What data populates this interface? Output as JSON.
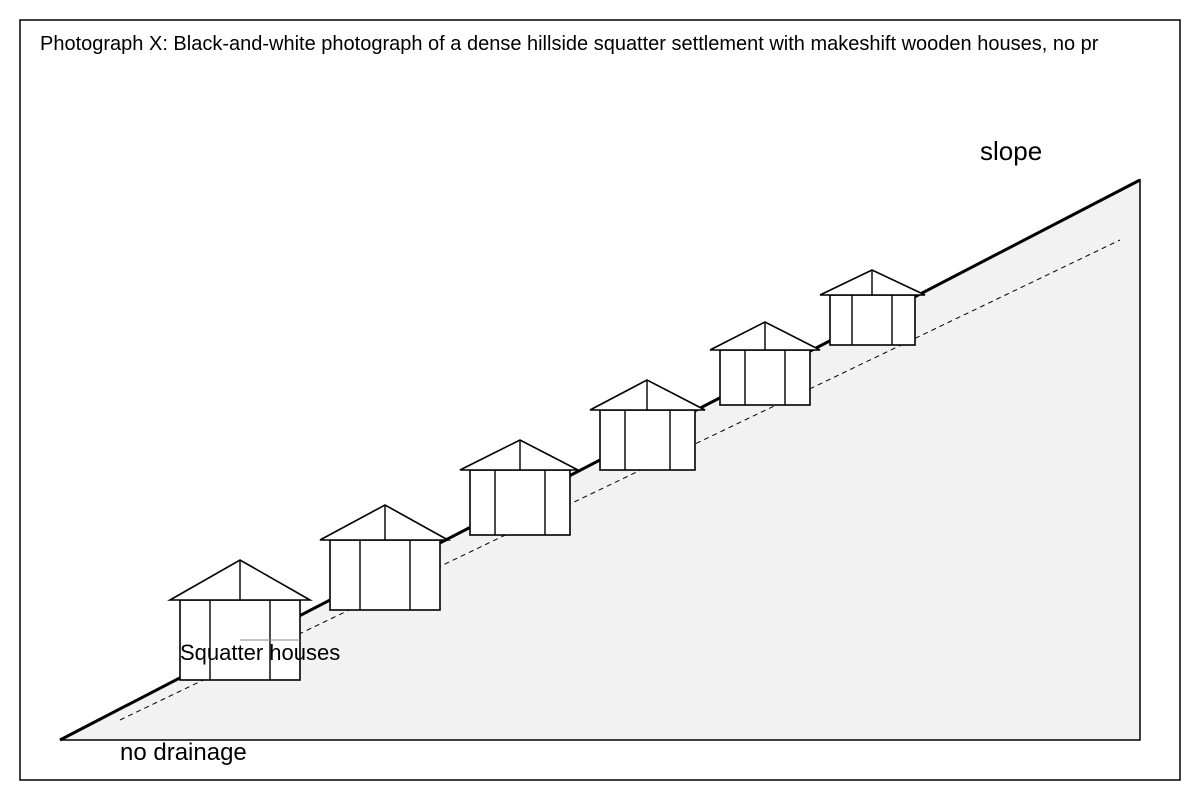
{
  "title": "Photograph X: Black-and-white photograph of a dense hillside squatter settlement with makeshift wooden houses, no pr",
  "labels": {
    "slope": "slope",
    "houses": "Squatter houses",
    "drainage": "no drainage"
  }
}
